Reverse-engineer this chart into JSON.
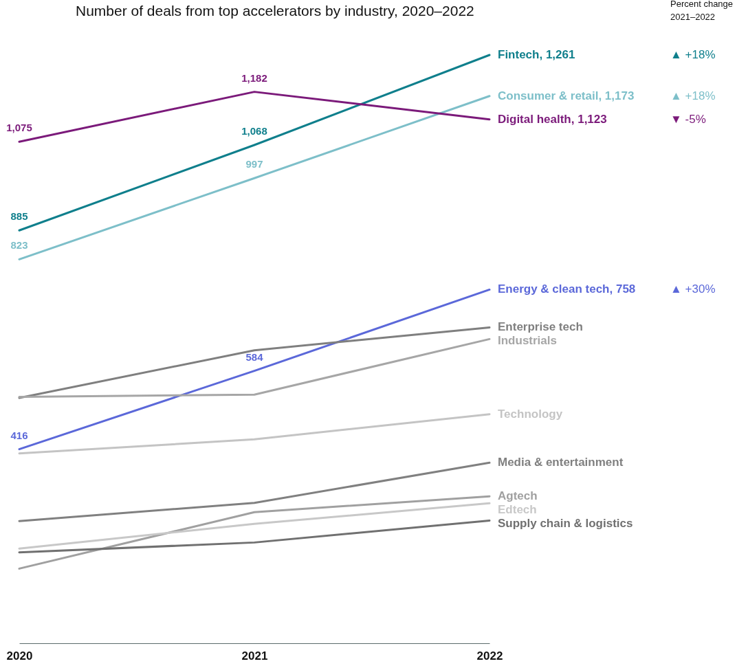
{
  "chart_data": {
    "type": "line",
    "title": "Number of deals from top accelerators by industry, 2020–2022",
    "categories": [
      "2020",
      "2021",
      "2022"
    ],
    "legend": false,
    "grid": false,
    "series": [
      {
        "name": "Fintech, 1,261",
        "color": "#0f7f8c",
        "values": [
          885,
          1068,
          1261
        ],
        "value_labels": [
          "885",
          "1,068",
          null
        ]
      },
      {
        "name": "Consumer & retail, 1,173",
        "color": "#7dbfc9",
        "values": [
          823,
          997,
          1173
        ],
        "value_labels": [
          "823",
          "997",
          null
        ]
      },
      {
        "name": "Digital health, 1,123",
        "color": "#7b1a7a",
        "values": [
          1075,
          1182,
          1123
        ],
        "value_labels": [
          "1,075",
          "1,182",
          null
        ]
      },
      {
        "name": "Energy & clean tech, 758",
        "color": "#5b68d9",
        "values": [
          416,
          584,
          758
        ],
        "value_labels": [
          "416",
          "584",
          null
        ]
      },
      {
        "name": "Enterprise tech",
        "color": "#7f7f7f",
        "values": [
          526,
          628,
          677
        ]
      },
      {
        "name": "Industrials",
        "color": "#a6a6a6",
        "values": [
          528,
          533,
          652
        ]
      },
      {
        "name": "Technology",
        "color": "#c4c4c4",
        "values": [
          407,
          437,
          491
        ]
      },
      {
        "name": "Media & entertainment",
        "color": "#808080",
        "values": [
          262,
          301,
          387
        ]
      },
      {
        "name": "Agtech",
        "color": "#a0a0a0",
        "values": [
          160,
          281,
          315
        ]
      },
      {
        "name": "Edtech",
        "color": "#c8c8c8",
        "values": [
          203,
          256,
          300
        ]
      },
      {
        "name": "Supply chain & logistics",
        "color": "#707070",
        "values": [
          195,
          216,
          263
        ]
      }
    ],
    "annotations": [
      "Percent change\n2021–2022",
      "▲ +18%",
      "▲ +18%",
      "▼ -5%",
      "▲ +30%"
    ]
  }
}
